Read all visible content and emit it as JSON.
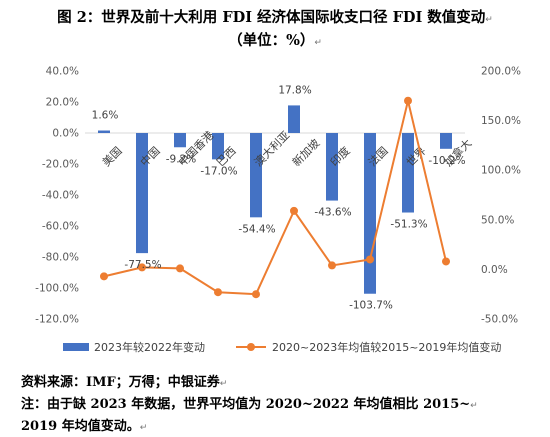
{
  "title": {
    "line1": "图 2：世界及前十大利用 FDI 经济体国际收支口径 FDI 数值变动",
    "line2": "（单位：%）"
  },
  "chart_data": {
    "type": "bar+line",
    "categories": [
      "美国",
      "中国",
      "中国香港",
      "巴西",
      "澳大利亚",
      "新加坡",
      "印度",
      "法国",
      "世界",
      "加拿大"
    ],
    "series": [
      {
        "name": "2023年较2022年变动",
        "type": "bar",
        "axis": "left",
        "color": "#4472c4",
        "values": [
          1.6,
          -77.5,
          -9.2,
          -17.0,
          -54.4,
          17.8,
          -43.6,
          -103.7,
          -51.3,
          -10.2
        ],
        "labels": [
          "1.6%",
          "-77.5%",
          "-9.2%",
          "-17.0%",
          "-54.4%",
          "17.8%",
          "-43.6%",
          "-103.7%",
          "-51.3%",
          "-10.2%"
        ]
      },
      {
        "name": "2020~2023年均值较2015~2019年均值变动",
        "type": "line",
        "axis": "right",
        "color": "#ed7d31",
        "values": [
          -7,
          2,
          1,
          -23,
          -25,
          59,
          4,
          10,
          170,
          8
        ]
      }
    ],
    "left_axis": {
      "ylim": [
        -120,
        40
      ],
      "ticks": [
        40,
        20,
        0,
        -20,
        -40,
        -60,
        -80,
        -100,
        -120
      ],
      "tick_labels": [
        "40.0%",
        "20.0%",
        "0.0%",
        "-20.0%",
        "-40.0%",
        "-60.0%",
        "-80.0%",
        "-100.0%",
        "-120.0%"
      ]
    },
    "right_axis": {
      "ylim": [
        -50,
        200
      ],
      "ticks": [
        200,
        150,
        100,
        50,
        0,
        -50
      ],
      "tick_labels": [
        "200.0%",
        "150.0%",
        "100.0%",
        "50.0%",
        "0.0%",
        "-50.0%"
      ]
    },
    "grid": false,
    "legend_position": "bottom"
  },
  "notes": {
    "source": "资料来源：IMF；万得；中银证券",
    "note_line1": "注：由于缺 2023 年数据，世界平均值为 2020~2022 年均值相比 2015~",
    "note_line2": "2019 年均值变动。"
  }
}
